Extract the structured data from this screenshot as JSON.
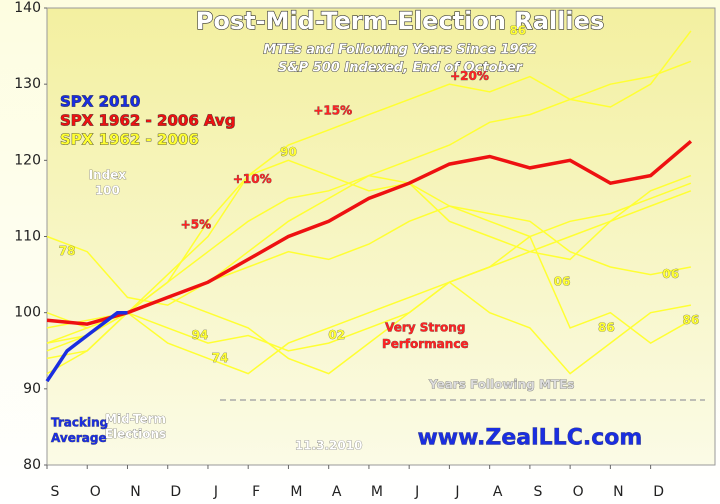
{
  "chart_data": {
    "type": "line",
    "title": "Post-Mid-Term-Election Rallies",
    "subtitle": [
      "MTEs and Following Years Since 1962",
      "S&P 500 Indexed, End of October"
    ],
    "xlim": [
      0,
      16.6
    ],
    "ylim": [
      80,
      140
    ],
    "xticks": [
      {
        "value": 0,
        "label": "S"
      },
      {
        "value": 1,
        "label": "O"
      },
      {
        "value": 2,
        "label": "N"
      },
      {
        "value": 3,
        "label": "D"
      },
      {
        "value": 4,
        "label": "J"
      },
      {
        "value": 5,
        "label": "F"
      },
      {
        "value": 6,
        "label": "M"
      },
      {
        "value": 7,
        "label": "A"
      },
      {
        "value": 8,
        "label": "M"
      },
      {
        "value": 9,
        "label": "J"
      },
      {
        "value": 10,
        "label": "J"
      },
      {
        "value": 11,
        "label": "A"
      },
      {
        "value": 12,
        "label": "S"
      },
      {
        "value": 13,
        "label": "O"
      },
      {
        "value": 14,
        "label": "N"
      },
      {
        "value": 15,
        "label": "D"
      }
    ],
    "yticks": [
      80,
      90,
      100,
      110,
      120,
      130,
      140
    ],
    "series": [
      {
        "name": "SPX 2010",
        "color": "#1a2ee0",
        "x": [
          0,
          0.25,
          0.5,
          0.75,
          1,
          1.25,
          1.5,
          1.75,
          2
        ],
        "values": [
          91,
          93,
          95,
          96,
          97,
          98,
          99,
          100,
          100
        ]
      },
      {
        "name": "SPX 1962 - 2006 Avg",
        "color": "#ee1111",
        "x": [
          0,
          1,
          2,
          3,
          4,
          5,
          6,
          7,
          8,
          9,
          10,
          11,
          12,
          13,
          14,
          15,
          16
        ],
        "values": [
          99,
          98.5,
          100,
          102,
          104,
          107,
          110,
          112,
          115,
          117,
          119.5,
          120.5,
          119,
          120,
          117,
          118,
          122.5
        ]
      },
      {
        "name": "SPX 1962 - 2006",
        "color": "#ffff33",
        "x": [
          0,
          1,
          2,
          3,
          4,
          5,
          6,
          7,
          8,
          9,
          10,
          11,
          12,
          13,
          14,
          15,
          16
        ],
        "lines": [
          [
            110,
            108,
            102,
            101,
            104,
            108,
            112,
            115,
            118,
            120,
            122,
            125,
            126,
            128,
            130,
            131,
            133
          ],
          [
            95,
            97,
            100,
            104,
            112,
            118,
            122,
            124,
            126,
            128,
            130,
            129,
            131,
            128,
            127,
            130,
            137
          ],
          [
            100,
            98,
            100,
            105,
            110,
            118,
            120,
            118,
            116,
            117,
            112,
            110,
            108,
            107,
            112,
            116,
            118
          ],
          [
            96,
            97,
            100,
            98,
            96,
            97,
            95,
            96,
            98,
            100,
            104,
            106,
            110,
            112,
            113,
            115,
            117
          ],
          [
            94,
            95,
            100,
            96,
            94,
            92,
            96,
            98,
            100,
            102,
            104,
            100,
            98,
            92,
            96,
            100,
            101
          ],
          [
            92,
            95,
            100,
            102,
            100,
            98,
            94,
            92,
            96,
            100,
            104,
            106,
            108,
            110,
            112,
            114,
            116
          ],
          [
            98,
            99,
            100,
            102,
            104,
            106,
            108,
            107,
            109,
            112,
            114,
            113,
            112,
            108,
            106,
            105,
            106
          ],
          [
            96,
            98,
            100,
            104,
            108,
            112,
            115,
            116,
            118,
            117,
            114,
            112,
            110,
            98,
            100,
            96,
            99
          ]
        ]
      }
    ],
    "annotations": [
      {
        "text": "78",
        "x": 0.5,
        "y": 108,
        "color": "#ffff33"
      },
      {
        "text": "90",
        "x": 6,
        "y": 121,
        "color": "#ffff33"
      },
      {
        "text": "86",
        "x": 11.7,
        "y": 137,
        "color": "#ffff33"
      },
      {
        "text": "94",
        "x": 3.8,
        "y": 97,
        "color": "#ffff33"
      },
      {
        "text": "74",
        "x": 4.3,
        "y": 94,
        "color": "#ffff33"
      },
      {
        "text": "02",
        "x": 7.2,
        "y": 97,
        "color": "#ffff33"
      },
      {
        "text": "06",
        "x": 12.8,
        "y": 104,
        "color": "#ffff33"
      },
      {
        "text": "86",
        "x": 13.9,
        "y": 98,
        "color": "#ffff33"
      },
      {
        "text": "06",
        "x": 15.5,
        "y": 105,
        "color": "#ffff33"
      },
      {
        "text": "86",
        "x": 16,
        "y": 99,
        "color": "#ffff33"
      },
      {
        "text": "Index",
        "x": 1.5,
        "y": 118,
        "color": "#ffffff"
      },
      {
        "text": "100",
        "x": 1.5,
        "y": 116,
        "color": "#ffffff"
      },
      {
        "text": "+5%",
        "x": 3.7,
        "y": 111.5,
        "color": "#ff2222"
      },
      {
        "text": "+10%",
        "x": 5.1,
        "y": 117.5,
        "color": "#ff2222"
      },
      {
        "text": "+15%",
        "x": 7.1,
        "y": 126.5,
        "color": "#ff2222"
      },
      {
        "text": "+20%",
        "x": 10.5,
        "y": 131,
        "color": "#ff2222"
      },
      {
        "text": "Very Strong",
        "x": 9.4,
        "y": 98,
        "color": "#ff2222"
      },
      {
        "text": "Performance",
        "x": 9.4,
        "y": 95.8,
        "color": "#ff2222"
      },
      {
        "text": "Years Following MTEs",
        "x": 11.3,
        "y": 90.5,
        "color": "#dddddd"
      },
      {
        "text": "Tracking",
        "x": 0.1,
        "y": 85.5,
        "color": "#1a2ee0"
      },
      {
        "text": "Average",
        "x": 0.1,
        "y": 83.5,
        "color": "#1a2ee0"
      },
      {
        "text": "Mid-Term",
        "x": 2.2,
        "y": 86,
        "color": "#ffffff"
      },
      {
        "text": "Elections",
        "x": 2.2,
        "y": 84,
        "color": "#ffffff"
      },
      {
        "text": "www.ZealLLC.com",
        "x": 12,
        "y": 83.5,
        "color": "#1a2ee0"
      },
      {
        "text": "11.3.2010",
        "x": 7,
        "y": 82.5,
        "color": "#ffffff"
      }
    ]
  }
}
